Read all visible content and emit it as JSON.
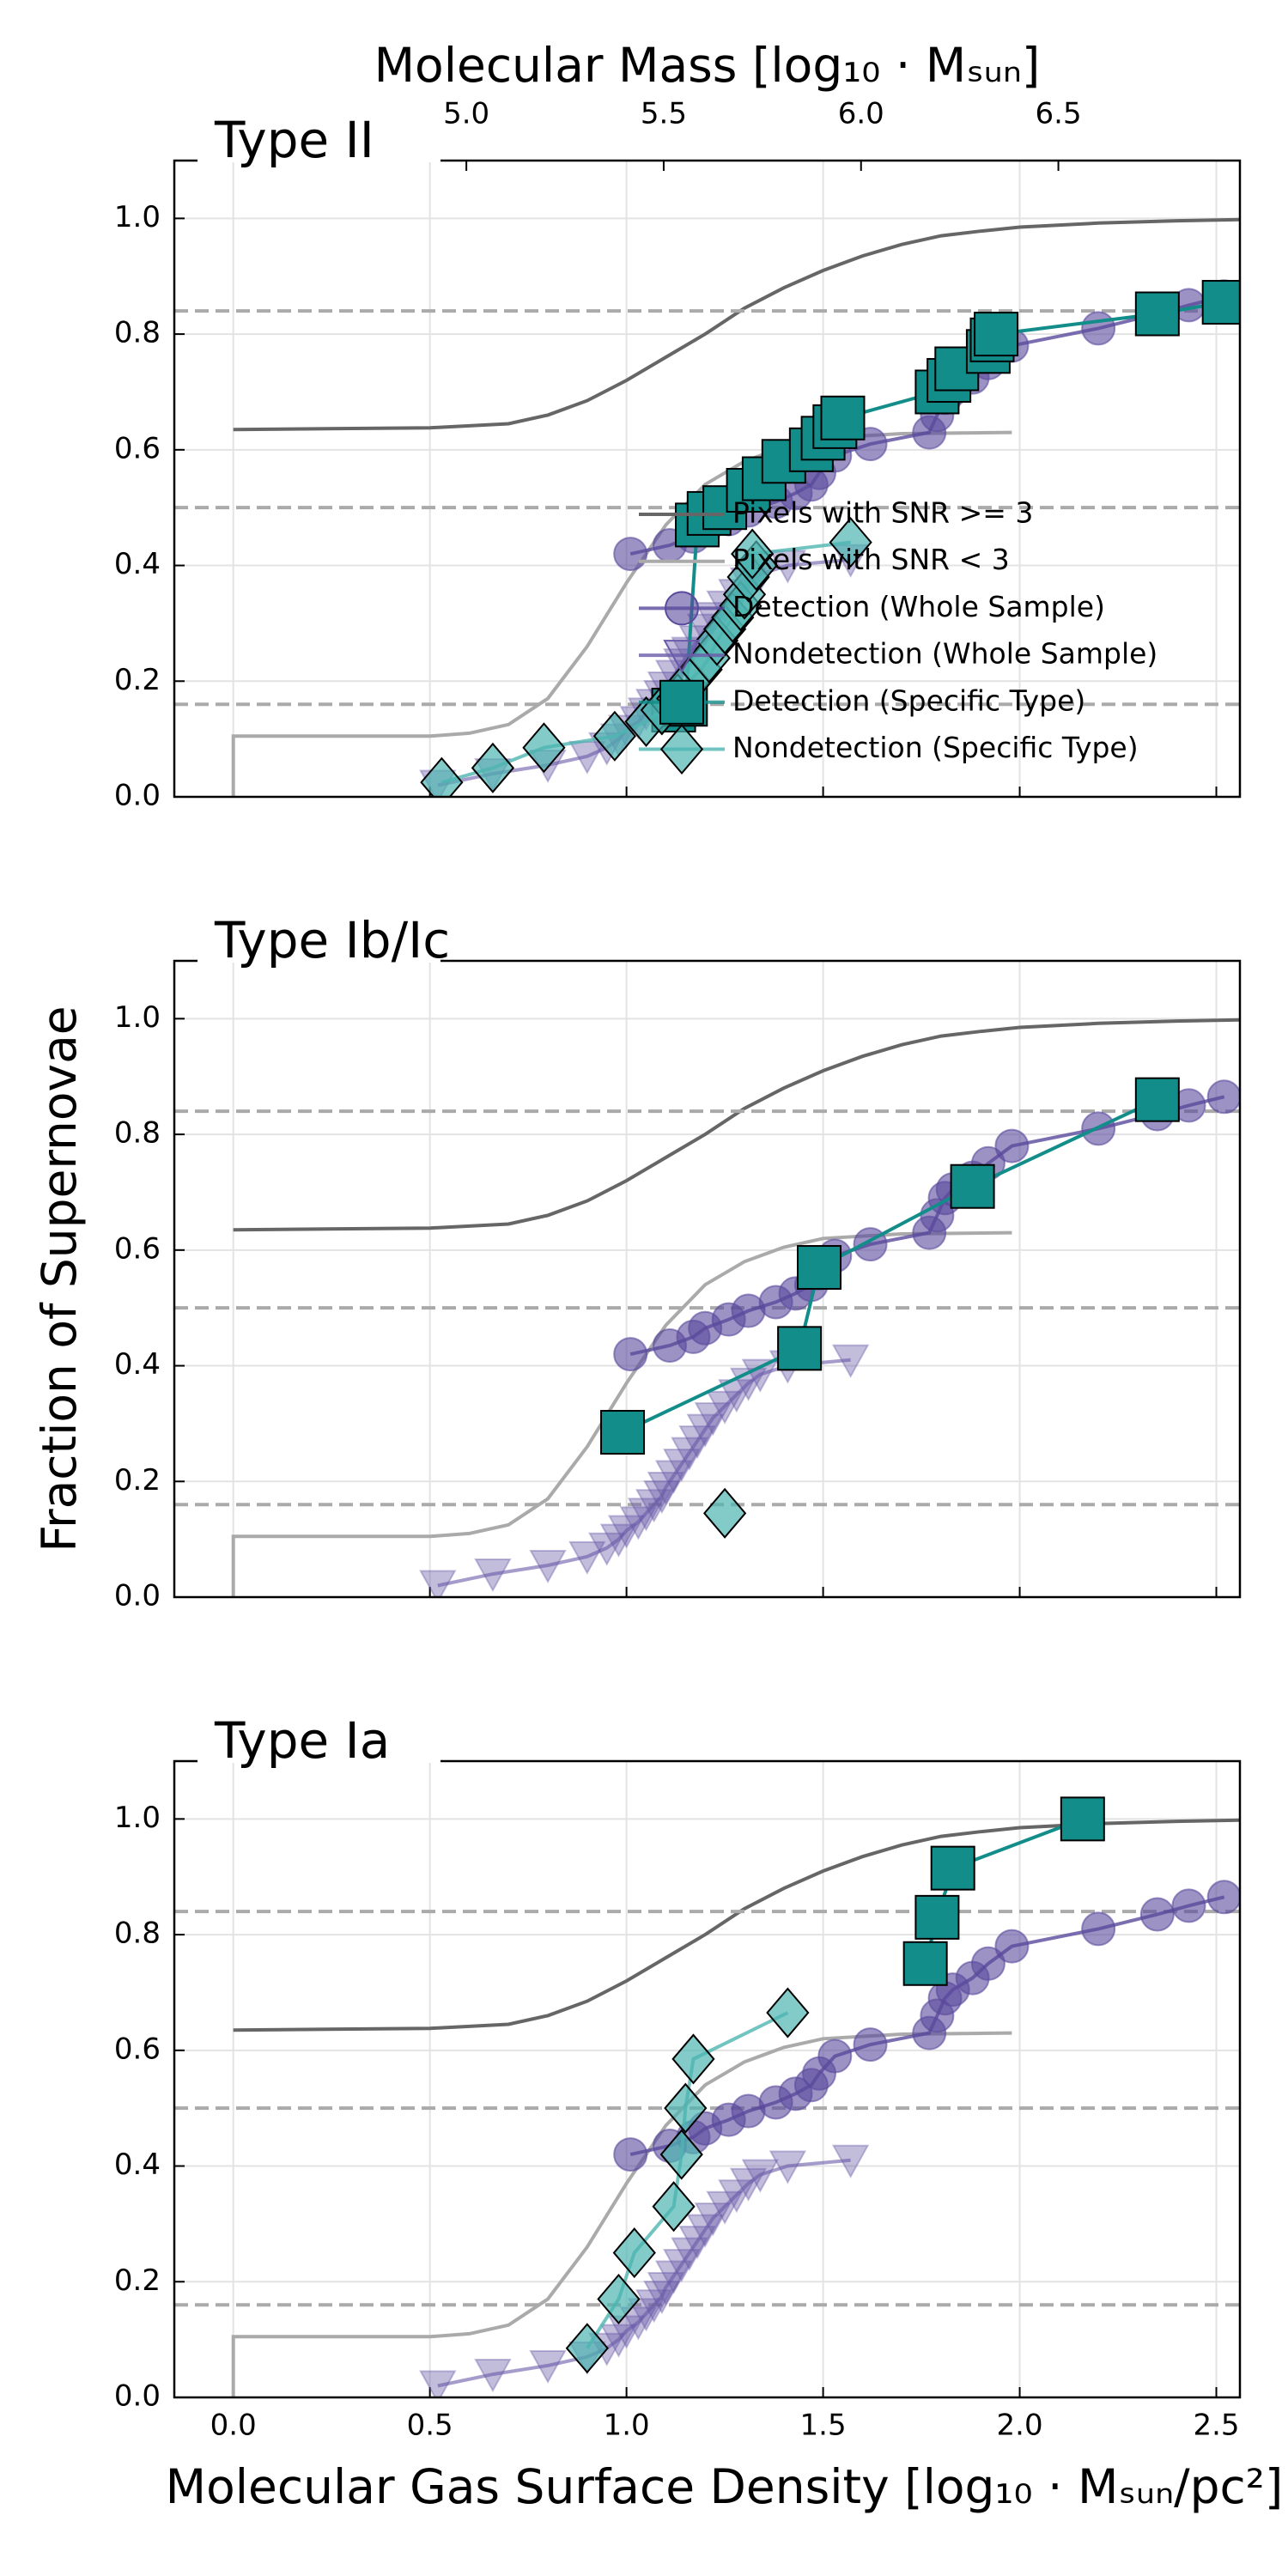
{
  "chart_data": [
    {
      "type": "line",
      "title": "Type II",
      "x2label": "Molecular Mass [log₁₀ · Mₛᵤₙ]",
      "x2lim": [
        4.26,
        6.96
      ],
      "x2ticks": [
        {
          "value": 5.0,
          "label": "5.0"
        },
        {
          "value": 5.5,
          "label": "5.5"
        },
        {
          "value": 6.0,
          "label": "6.0"
        },
        {
          "value": 6.5,
          "label": "6.5"
        }
      ],
      "xlim": [
        -0.15,
        2.56
      ],
      "xticks": [
        0,
        0.5,
        1,
        1.5,
        2,
        2.5
      ],
      "ylim": [
        0,
        1.1
      ],
      "yticks": [
        {
          "value": 0,
          "label": "0.0"
        },
        {
          "value": 0.2,
          "label": "0.2"
        },
        {
          "value": 0.4,
          "label": "0.4"
        },
        {
          "value": 0.6,
          "label": "0.6"
        },
        {
          "value": 0.8,
          "label": "0.8"
        },
        {
          "value": 1.0,
          "label": "1.0"
        }
      ],
      "grid": true,
      "hlines": [
        0.16,
        0.5,
        0.84
      ],
      "legend": "center right",
      "series": [
        {
          "name": "Pixels with SNR >= 3",
          "color": "#666666",
          "marker": "none",
          "alpha": 1,
          "x": [
            0,
            0.5,
            0.7,
            0.8,
            0.9,
            1.0,
            1.1,
            1.2,
            1.3,
            1.4,
            1.5,
            1.6,
            1.7,
            1.8,
            1.9,
            2.0,
            2.2,
            2.4,
            2.56
          ],
          "values": [
            0.635,
            0.638,
            0.645,
            0.66,
            0.685,
            0.72,
            0.76,
            0.8,
            0.845,
            0.88,
            0.91,
            0.935,
            0.955,
            0.97,
            0.978,
            0.985,
            0.992,
            0.996,
            0.998
          ]
        },
        {
          "name": "Pixels with SNR < 3",
          "color": "#aaaaaa",
          "marker": "none",
          "alpha": 1,
          "x": [
            0,
            0,
            0.5,
            0.6,
            0.7,
            0.8,
            0.9,
            1.0,
            1.1,
            1.2,
            1.3,
            1.4,
            1.5,
            1.7,
            1.98
          ],
          "values": [
            0,
            0.105,
            0.105,
            0.11,
            0.125,
            0.17,
            0.26,
            0.37,
            0.47,
            0.54,
            0.58,
            0.605,
            0.62,
            0.628,
            0.63
          ]
        },
        {
          "name": "Detection (Whole Sample)",
          "color": "#5a4a9c",
          "marker": "o",
          "alpha": 0.6,
          "edgecolor": "#5a4a9c",
          "x": [
            1.01,
            1.11,
            1.17,
            1.2,
            1.26,
            1.31,
            1.38,
            1.43,
            1.47,
            1.49,
            1.53,
            1.62,
            1.77,
            1.79,
            1.81,
            1.83,
            1.88,
            1.92,
            1.98,
            2.2,
            2.35,
            2.43,
            2.52
          ],
          "values": [
            0.42,
            0.435,
            0.45,
            0.465,
            0.48,
            0.495,
            0.51,
            0.525,
            0.54,
            0.56,
            0.59,
            0.61,
            0.63,
            0.66,
            0.69,
            0.705,
            0.725,
            0.75,
            0.78,
            0.81,
            0.835,
            0.85,
            0.865
          ]
        },
        {
          "name": "Nondetection (Whole Sample)",
          "color": "#6a5aa8",
          "marker": "v",
          "alpha": 0.4,
          "edgecolor": "#6a5aa8",
          "x": [
            0.52,
            0.66,
            0.8,
            0.9,
            0.95,
            0.98,
            1.0,
            1.03,
            1.05,
            1.07,
            1.09,
            1.1,
            1.12,
            1.14,
            1.16,
            1.18,
            1.2,
            1.22,
            1.25,
            1.28,
            1.31,
            1.34,
            1.41,
            1.57
          ],
          "values": [
            0.02,
            0.04,
            0.055,
            0.07,
            0.085,
            0.1,
            0.115,
            0.13,
            0.145,
            0.16,
            0.175,
            0.19,
            0.21,
            0.23,
            0.25,
            0.27,
            0.29,
            0.31,
            0.33,
            0.35,
            0.37,
            0.385,
            0.4,
            0.41
          ]
        },
        {
          "name": "Detection (Specific Type)",
          "color": "#138d8a",
          "marker": "s",
          "alpha": 1,
          "edgecolor": "#000000",
          "x": [
            1.12,
            1.15,
            1.18,
            1.21,
            1.25,
            1.31,
            1.35,
            1.4,
            1.47,
            1.5,
            1.53,
            1.55,
            1.79,
            1.82,
            1.84,
            1.92,
            1.93,
            1.94,
            2.35,
            2.52
          ],
          "values": [
            0.15,
            0.16,
            0.47,
            0.49,
            0.5,
            0.53,
            0.55,
            0.58,
            0.6,
            0.62,
            0.64,
            0.655,
            0.7,
            0.72,
            0.74,
            0.77,
            0.79,
            0.8,
            0.835,
            0.855
          ]
        },
        {
          "name": "Nondetection (Specific Type)",
          "color": "#4db5b0",
          "marker": "D",
          "alpha": 0.7,
          "edgecolor": "#000000",
          "x": [
            0.53,
            0.66,
            0.79,
            0.97,
            1.05,
            1.09,
            1.13,
            1.16,
            1.19,
            1.21,
            1.23,
            1.25,
            1.27,
            1.29,
            1.3,
            1.31,
            1.33,
            1.32,
            1.57
          ],
          "values": [
            0.025,
            0.05,
            0.085,
            0.105,
            0.13,
            0.15,
            0.17,
            0.2,
            0.22,
            0.24,
            0.27,
            0.29,
            0.31,
            0.33,
            0.35,
            0.38,
            0.4,
            0.42,
            0.44
          ]
        }
      ]
    },
    {
      "type": "line",
      "title": "Type Ib/Ic",
      "ylabel": "Fraction of Supernovae",
      "xlim": [
        -0.15,
        2.56
      ],
      "xticks": [
        0,
        0.5,
        1,
        1.5,
        2,
        2.5
      ],
      "ylim": [
        0,
        1.1
      ],
      "yticks": [
        {
          "value": 0,
          "label": "0.0"
        },
        {
          "value": 0.2,
          "label": "0.2"
        },
        {
          "value": 0.4,
          "label": "0.4"
        },
        {
          "value": 0.6,
          "label": "0.6"
        },
        {
          "value": 0.8,
          "label": "0.8"
        },
        {
          "value": 1.0,
          "label": "1.0"
        }
      ],
      "grid": true,
      "hlines": [
        0.16,
        0.5,
        0.84
      ],
      "series": [
        {
          "color": "#666666",
          "marker": "none",
          "alpha": 1,
          "x": [
            0,
            0.5,
            0.7,
            0.8,
            0.9,
            1.0,
            1.1,
            1.2,
            1.3,
            1.4,
            1.5,
            1.6,
            1.7,
            1.8,
            1.9,
            2.0,
            2.2,
            2.4,
            2.56
          ],
          "values": [
            0.635,
            0.638,
            0.645,
            0.66,
            0.685,
            0.72,
            0.76,
            0.8,
            0.845,
            0.88,
            0.91,
            0.935,
            0.955,
            0.97,
            0.978,
            0.985,
            0.992,
            0.996,
            0.998
          ]
        },
        {
          "color": "#aaaaaa",
          "marker": "none",
          "alpha": 1,
          "x": [
            0,
            0,
            0.5,
            0.6,
            0.7,
            0.8,
            0.9,
            1.0,
            1.1,
            1.2,
            1.3,
            1.4,
            1.5,
            1.7,
            1.98
          ],
          "values": [
            0,
            0.105,
            0.105,
            0.11,
            0.125,
            0.17,
            0.26,
            0.37,
            0.47,
            0.54,
            0.58,
            0.605,
            0.62,
            0.628,
            0.63
          ]
        },
        {
          "color": "#5a4a9c",
          "marker": "o",
          "alpha": 0.6,
          "edgecolor": "#5a4a9c",
          "x": [
            1.01,
            1.11,
            1.17,
            1.2,
            1.26,
            1.31,
            1.38,
            1.43,
            1.47,
            1.49,
            1.53,
            1.62,
            1.77,
            1.79,
            1.81,
            1.83,
            1.88,
            1.92,
            1.98,
            2.2,
            2.35,
            2.43,
            2.52
          ],
          "values": [
            0.42,
            0.435,
            0.45,
            0.465,
            0.48,
            0.495,
            0.51,
            0.525,
            0.54,
            0.56,
            0.59,
            0.61,
            0.63,
            0.66,
            0.69,
            0.705,
            0.725,
            0.75,
            0.78,
            0.81,
            0.835,
            0.85,
            0.865
          ]
        },
        {
          "color": "#6a5aa8",
          "marker": "v",
          "alpha": 0.4,
          "edgecolor": "#6a5aa8",
          "x": [
            0.52,
            0.66,
            0.8,
            0.9,
            0.95,
            0.98,
            1.0,
            1.03,
            1.05,
            1.07,
            1.09,
            1.1,
            1.12,
            1.14,
            1.16,
            1.18,
            1.2,
            1.22,
            1.25,
            1.28,
            1.31,
            1.34,
            1.41,
            1.57
          ],
          "values": [
            0.02,
            0.04,
            0.055,
            0.07,
            0.085,
            0.1,
            0.115,
            0.13,
            0.145,
            0.16,
            0.175,
            0.19,
            0.21,
            0.23,
            0.25,
            0.27,
            0.29,
            0.31,
            0.33,
            0.35,
            0.37,
            0.385,
            0.4,
            0.41
          ]
        },
        {
          "color": "#138d8a",
          "marker": "s",
          "alpha": 1,
          "edgecolor": "#000000",
          "x": [
            0.99,
            1.44,
            1.49,
            1.88,
            2.35
          ],
          "values": [
            0.285,
            0.43,
            0.57,
            0.71,
            0.86
          ]
        },
        {
          "color": "#4db5b0",
          "marker": "D",
          "alpha": 0.7,
          "edgecolor": "#000000",
          "x": [
            1.25
          ],
          "values": [
            0.145
          ]
        }
      ]
    },
    {
      "type": "line",
      "title": "Type Ia",
      "xlabel": "Molecular Gas Surface Density [log₁₀ · Mₛᵤₙ/pc²]",
      "xlim": [
        -0.15,
        2.56
      ],
      "xticks": [
        {
          "value": 0,
          "label": "0.0"
        },
        {
          "value": 0.5,
          "label": "0.5"
        },
        {
          "value": 1,
          "label": "1.0"
        },
        {
          "value": 1.5,
          "label": "1.5"
        },
        {
          "value": 2,
          "label": "2.0"
        },
        {
          "value": 2.5,
          "label": "2.5"
        }
      ],
      "ylim": [
        0,
        1.1
      ],
      "yticks": [
        {
          "value": 0,
          "label": "0.0"
        },
        {
          "value": 0.2,
          "label": "0.2"
        },
        {
          "value": 0.4,
          "label": "0.4"
        },
        {
          "value": 0.6,
          "label": "0.6"
        },
        {
          "value": 0.8,
          "label": "0.8"
        },
        {
          "value": 1.0,
          "label": "1.0"
        }
      ],
      "grid": true,
      "hlines": [
        0.16,
        0.5,
        0.84
      ],
      "series": [
        {
          "color": "#666666",
          "marker": "none",
          "alpha": 1,
          "x": [
            0,
            0.5,
            0.7,
            0.8,
            0.9,
            1.0,
            1.1,
            1.2,
            1.3,
            1.4,
            1.5,
            1.6,
            1.7,
            1.8,
            1.9,
            2.0,
            2.2,
            2.4,
            2.56
          ],
          "values": [
            0.635,
            0.638,
            0.645,
            0.66,
            0.685,
            0.72,
            0.76,
            0.8,
            0.845,
            0.88,
            0.91,
            0.935,
            0.955,
            0.97,
            0.978,
            0.985,
            0.992,
            0.996,
            0.998
          ]
        },
        {
          "color": "#aaaaaa",
          "marker": "none",
          "alpha": 1,
          "x": [
            0,
            0,
            0.5,
            0.6,
            0.7,
            0.8,
            0.9,
            1.0,
            1.1,
            1.2,
            1.3,
            1.4,
            1.5,
            1.7,
            1.98
          ],
          "values": [
            0,
            0.105,
            0.105,
            0.11,
            0.125,
            0.17,
            0.26,
            0.37,
            0.47,
            0.54,
            0.58,
            0.605,
            0.62,
            0.628,
            0.63
          ]
        },
        {
          "color": "#5a4a9c",
          "marker": "o",
          "alpha": 0.6,
          "edgecolor": "#5a4a9c",
          "x": [
            1.01,
            1.11,
            1.17,
            1.2,
            1.26,
            1.31,
            1.38,
            1.43,
            1.47,
            1.49,
            1.53,
            1.62,
            1.77,
            1.79,
            1.81,
            1.83,
            1.88,
            1.92,
            1.98,
            2.2,
            2.35,
            2.43,
            2.52
          ],
          "values": [
            0.42,
            0.435,
            0.45,
            0.465,
            0.48,
            0.495,
            0.51,
            0.525,
            0.54,
            0.56,
            0.59,
            0.61,
            0.63,
            0.66,
            0.69,
            0.705,
            0.725,
            0.75,
            0.78,
            0.81,
            0.835,
            0.85,
            0.865
          ]
        },
        {
          "color": "#6a5aa8",
          "marker": "v",
          "alpha": 0.4,
          "edgecolor": "#6a5aa8",
          "x": [
            0.52,
            0.66,
            0.8,
            0.9,
            0.95,
            0.98,
            1.0,
            1.03,
            1.05,
            1.07,
            1.09,
            1.1,
            1.12,
            1.14,
            1.16,
            1.18,
            1.2,
            1.22,
            1.25,
            1.28,
            1.31,
            1.34,
            1.41,
            1.57
          ],
          "values": [
            0.02,
            0.04,
            0.055,
            0.07,
            0.085,
            0.1,
            0.115,
            0.13,
            0.145,
            0.16,
            0.175,
            0.19,
            0.21,
            0.23,
            0.25,
            0.27,
            0.29,
            0.31,
            0.33,
            0.35,
            0.37,
            0.385,
            0.4,
            0.41
          ]
        },
        {
          "color": "#138d8a",
          "marker": "s",
          "alpha": 1,
          "edgecolor": "#000000",
          "x": [
            1.76,
            1.79,
            1.83,
            2.16
          ],
          "values": [
            0.75,
            0.83,
            0.915,
            1.0
          ]
        },
        {
          "color": "#4db5b0",
          "marker": "D",
          "alpha": 0.7,
          "edgecolor": "#000000",
          "x": [
            0.9,
            0.98,
            1.02,
            1.12,
            1.14,
            1.15,
            1.17,
            1.41
          ],
          "values": [
            0.085,
            0.17,
            0.25,
            0.33,
            0.42,
            0.5,
            0.585,
            0.665
          ]
        }
      ]
    }
  ]
}
